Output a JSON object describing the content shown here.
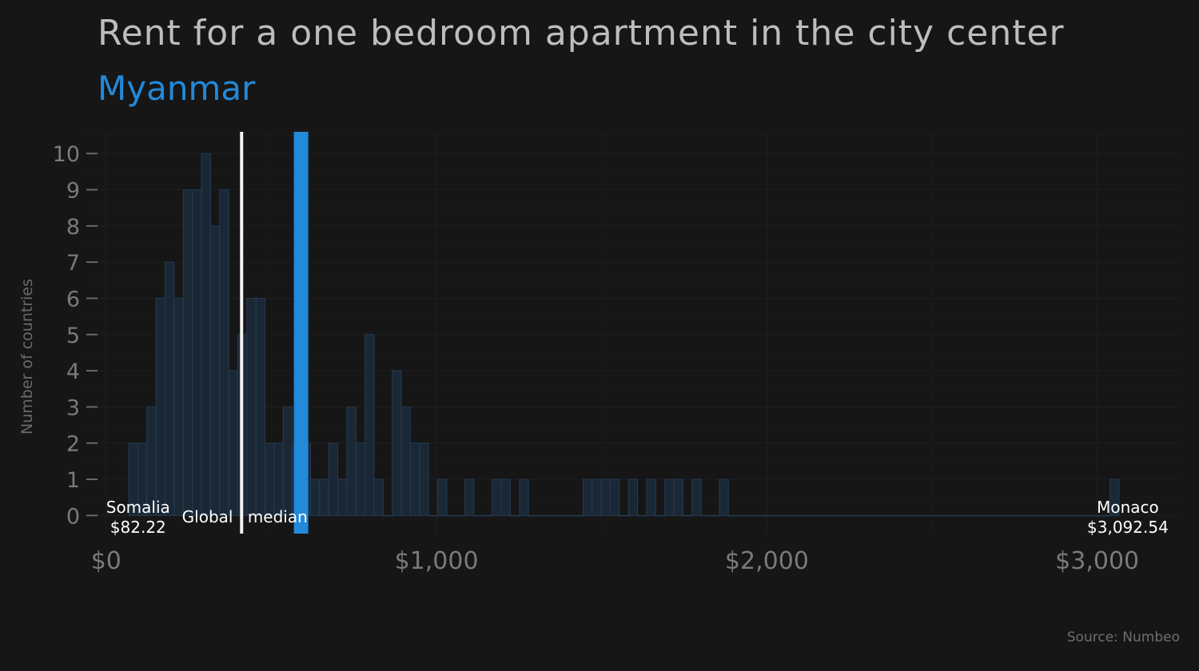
{
  "title": "Rent for a one bedroom apartment in the city center",
  "subtitle": "Myanmar",
  "source": "Source: Numbeo",
  "chart_data": {
    "type": "bar",
    "histogram": true,
    "ylabel": "Number of countries",
    "xlim": [
      -60,
      3250
    ],
    "ylim": [
      -0.5,
      10.6
    ],
    "bin_width": 27.5,
    "bin_start": 68.5,
    "counts": [
      2,
      2,
      3,
      6,
      7,
      6,
      9,
      9,
      10,
      8,
      9,
      4,
      5,
      6,
      6,
      2,
      2,
      3,
      2,
      2,
      1,
      1,
      2,
      1,
      3,
      2,
      5,
      1,
      0,
      4,
      3,
      2,
      2,
      0,
      1,
      0,
      0,
      1,
      0,
      0,
      1,
      1,
      0,
      1,
      0,
      0,
      0,
      0,
      0,
      0,
      1,
      1,
      1,
      1,
      0,
      1,
      0,
      1,
      0,
      1,
      1,
      0,
      1,
      0,
      0,
      1,
      0,
      0,
      0,
      0,
      0,
      0,
      0,
      0,
      0,
      0,
      0,
      0,
      0,
      0,
      0,
      0,
      0,
      0,
      0,
      0,
      0,
      0,
      0,
      0,
      0,
      0,
      0,
      0,
      0,
      0,
      0,
      0,
      0,
      0,
      0,
      0,
      0,
      0,
      0,
      0,
      0,
      0,
      1
    ],
    "yticks": [
      "0",
      "1",
      "2",
      "3",
      "4",
      "5",
      "6",
      "7",
      "8",
      "9",
      "10"
    ],
    "xticks": [
      {
        "value": 0,
        "label": "$0"
      },
      {
        "value": 1000,
        "label": "$1,000"
      },
      {
        "value": 2000,
        "label": "$2,000"
      },
      {
        "value": 3000,
        "label": "$3,000"
      }
    ],
    "global_median": 410,
    "highlight": {
      "value": 590
    },
    "annotations": {
      "min": {
        "label": "Somalia",
        "value": "$82.22",
        "x": 82.22
      },
      "max": {
        "label": "Monaco",
        "value": "$3,092.54",
        "x": 3092.54
      },
      "median_label": "Global median"
    },
    "colors": {
      "background": "#161616",
      "bar_fill": "#1a2836",
      "bar_stroke": "#253b52",
      "highlight": "#2389d9",
      "median_line": "#f2f2f2",
      "grid": "#1f1f1f"
    },
    "grid": true
  }
}
